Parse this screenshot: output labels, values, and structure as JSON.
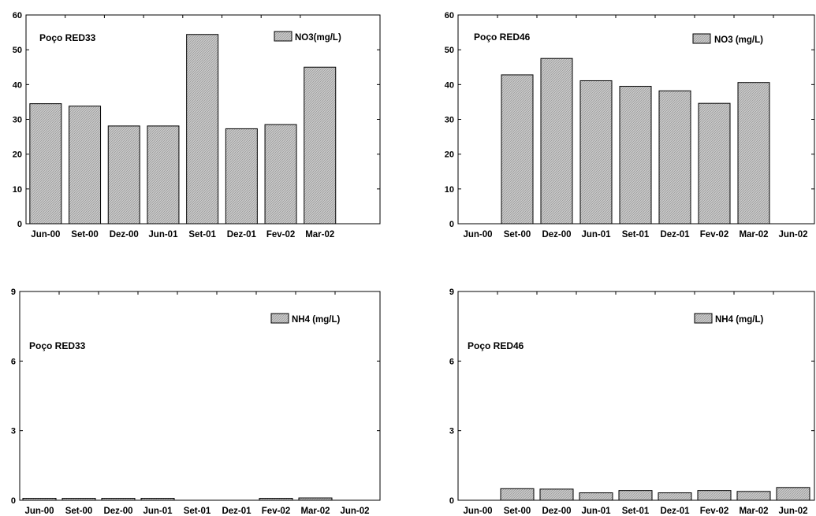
{
  "colors": {
    "bar_fill": "#c8c8c8",
    "bar_stroke": "#000000",
    "axis": "#000000",
    "background": "#ffffff"
  },
  "chart_data": [
    {
      "type": "bar",
      "annotation": "Poço RED33",
      "legend": "NO3(mg/L)",
      "legend_position": "top-right",
      "categories": [
        "Jun-00",
        "Set-00",
        "Dez-00",
        "Jun-01",
        "Set-01",
        "Dez-01",
        "Fev-02",
        "Mar-02"
      ],
      "values": [
        34.5,
        33.8,
        28.1,
        28.1,
        54.4,
        27.3,
        28.5,
        45.0
      ],
      "yticks": [
        0,
        10,
        20,
        30,
        40,
        50,
        60
      ],
      "ylim": [
        0,
        60
      ],
      "grid": false
    },
    {
      "type": "bar",
      "annotation": "Poço RED46",
      "legend": "NO3 (mg/L)",
      "legend_position": "top-right",
      "categories": [
        "Jun-00",
        "Set-00",
        "Dez-00",
        "Jun-01",
        "Set-01",
        "Dez-01",
        "Fev-02",
        "Mar-02",
        "Jun-02"
      ],
      "values": [
        null,
        42.8,
        47.5,
        41.1,
        39.5,
        38.2,
        34.6,
        40.6,
        null
      ],
      "yticks": [
        0,
        10,
        20,
        30,
        40,
        50,
        60
      ],
      "ylim": [
        0,
        60
      ],
      "grid": false
    },
    {
      "type": "bar",
      "annotation": "Poço RED33",
      "legend": "NH4 (mg/L)",
      "legend_position": "top-right",
      "categories": [
        "Jun-00",
        "Set-00",
        "Dez-00",
        "Jun-01",
        "Set-01",
        "Dez-01",
        "Fev-02",
        "Mar-02",
        "Jun-02"
      ],
      "values": [
        0.05,
        0.05,
        0.05,
        0.05,
        null,
        null,
        0.05,
        0.1,
        null
      ],
      "yticks": [
        0,
        3,
        6,
        9
      ],
      "ylim": [
        0,
        9
      ],
      "grid": false
    },
    {
      "type": "bar",
      "annotation": "Poço RED46",
      "legend": "NH4 (mg/L)",
      "legend_position": "top-right",
      "categories": [
        "Jun-00",
        "Set-00",
        "Dez-00",
        "Jun-01",
        "Set-01",
        "Dez-01",
        "Fev-02",
        "Mar-02",
        "Jun-02"
      ],
      "values": [
        null,
        0.5,
        0.48,
        0.32,
        0.42,
        0.32,
        0.42,
        0.38,
        0.55
      ],
      "yticks": [
        0,
        3,
        6,
        9
      ],
      "ylim": [
        0,
        9
      ],
      "grid": false
    }
  ]
}
